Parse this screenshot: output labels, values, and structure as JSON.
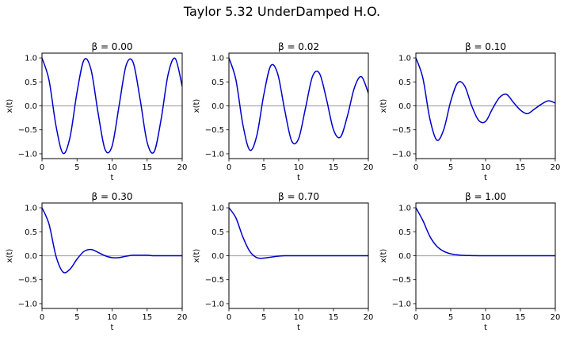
{
  "figure_title": "Taylor 5.32 UnderDamped H.O.",
  "chart_data": [
    {
      "type": "line",
      "title": "β = 0.00",
      "beta": 0.0,
      "xlabel": "t",
      "ylabel": "x(t)",
      "xlim": [
        0,
        20
      ],
      "ylim": [
        -1.1,
        1.1
      ],
      "xticks": [
        "0",
        "5",
        "10",
        "15",
        "20"
      ],
      "yticks": [
        "1.0",
        "0.5",
        "0.0",
        "−0.5",
        "−1.0"
      ],
      "series": [
        {
          "color": "#0000cc",
          "x": [
            0,
            1,
            2,
            3,
            4,
            5,
            6,
            7,
            8,
            9,
            10,
            11,
            12,
            13,
            14,
            15,
            16,
            17,
            18,
            19,
            20
          ],
          "y": [
            1.0,
            0.54,
            -0.416,
            -0.99,
            -0.654,
            0.284,
            0.96,
            0.754,
            -0.146,
            -0.911,
            -0.839,
            0.004,
            0.844,
            0.907,
            0.137,
            -0.76,
            -0.958,
            -0.275,
            0.66,
            0.989,
            0.408
          ]
        }
      ]
    },
    {
      "type": "line",
      "title": "β = 0.02",
      "beta": 0.02,
      "xlabel": "t",
      "ylabel": "x(t)",
      "xlim": [
        0,
        20
      ],
      "ylim": [
        -1.1,
        1.1
      ],
      "xticks": [
        "0",
        "5",
        "10",
        "15",
        "20"
      ],
      "yticks": [
        "1.0",
        "0.5",
        "0.0",
        "−0.5",
        "−1.0"
      ],
      "series": [
        {
          "color": "#0000cc",
          "x": [
            0,
            1,
            2,
            3,
            4,
            5,
            6,
            7,
            8,
            9,
            10,
            11,
            12,
            13,
            14,
            15,
            16,
            17,
            18,
            19,
            20
          ],
          "y": [
            1.0,
            0.545,
            -0.391,
            -0.923,
            -0.62,
            0.229,
            0.836,
            0.667,
            -0.086,
            -0.732,
            -0.683,
            -0.036,
            0.618,
            0.674,
            0.135,
            -0.498,
            -0.65,
            -0.211,
            0.376,
            0.61,
            0.265
          ]
        }
      ]
    },
    {
      "type": "line",
      "title": "β = 0.10",
      "beta": 0.1,
      "xlabel": "t",
      "ylabel": "x(t)",
      "xlim": [
        0,
        20
      ],
      "ylim": [
        -1.1,
        1.1
      ],
      "xticks": [
        "0",
        "5",
        "10",
        "15",
        "20"
      ],
      "yticks": [
        "1.0",
        "0.5",
        "0.0",
        "−0.5",
        "−1.0"
      ],
      "series": [
        {
          "color": "#0000cc",
          "x": [
            0,
            1,
            2,
            3,
            4,
            5,
            6,
            7,
            8,
            9,
            10,
            11,
            12,
            13,
            14,
            15,
            16,
            17,
            18,
            19,
            20
          ],
          "y": [
            1.0,
            0.583,
            -0.266,
            -0.714,
            -0.494,
            0.096,
            0.481,
            0.416,
            0.004,
            -0.302,
            -0.325,
            -0.058,
            0.174,
            0.24,
            0.072,
            -0.088,
            -0.164,
            -0.068,
            0.034,
            0.105,
            0.058
          ]
        }
      ]
    },
    {
      "type": "line",
      "title": "β = 0.30",
      "beta": 0.3,
      "xlabel": "t",
      "ylabel": "x(t)",
      "xlim": [
        0,
        20
      ],
      "ylim": [
        -1.1,
        1.1
      ],
      "xticks": [
        "0",
        "5",
        "10",
        "15",
        "20"
      ],
      "yticks": [
        "1.0",
        "0.5",
        "0.0",
        "−0.5",
        "−1.0"
      ],
      "series": [
        {
          "color": "#0000cc",
          "x": [
            0,
            1,
            2,
            3,
            4,
            5,
            6,
            7,
            8,
            9,
            10,
            11,
            12,
            13,
            14,
            15,
            16,
            17,
            18,
            19,
            20
          ],
          "y": [
            1.0,
            0.66,
            -0.01,
            -0.34,
            -0.28,
            -0.07,
            0.09,
            0.13,
            0.07,
            0.0,
            -0.04,
            -0.04,
            -0.01,
            0.01,
            0.01,
            0.01,
            0.0,
            0.0,
            0.0,
            0.0,
            0.0
          ]
        }
      ]
    },
    {
      "type": "line",
      "title": "β = 0.70",
      "beta": 0.7,
      "xlabel": "t",
      "ylabel": "x(t)",
      "xlim": [
        0,
        20
      ],
      "ylim": [
        -1.1,
        1.1
      ],
      "xticks": [
        "0",
        "5",
        "10",
        "15",
        "20"
      ],
      "yticks": [
        "1.0",
        "0.5",
        "0.0",
        "−0.5",
        "−1.0"
      ],
      "series": [
        {
          "color": "#0000cc",
          "x": [
            0,
            1,
            2,
            3,
            4,
            5,
            6,
            7,
            8,
            9,
            10,
            11,
            12,
            13,
            14,
            15,
            16,
            17,
            18,
            19,
            20
          ],
          "y": [
            1.0,
            0.79,
            0.39,
            0.09,
            -0.04,
            -0.05,
            -0.03,
            -0.01,
            0.0,
            0.0,
            0.0,
            0.0,
            0.0,
            0.0,
            0.0,
            0.0,
            0.0,
            0.0,
            0.0,
            0.0,
            0.0
          ]
        }
      ]
    },
    {
      "type": "line",
      "title": "β = 1.00",
      "beta": 1.0,
      "xlabel": "t",
      "ylabel": "x(t)",
      "xlim": [
        0,
        20
      ],
      "ylim": [
        -1.1,
        1.1
      ],
      "xticks": [
        "0",
        "5",
        "10",
        "15",
        "20"
      ],
      "yticks": [
        "1.0",
        "0.5",
        "0.0",
        "−0.5",
        "−1.0"
      ],
      "series": [
        {
          "color": "#0000cc",
          "x": [
            0,
            1,
            2,
            3,
            4,
            5,
            6,
            7,
            8,
            9,
            10,
            11,
            12,
            13,
            14,
            15,
            16,
            17,
            18,
            19,
            20
          ],
          "y": [
            1.0,
            0.736,
            0.406,
            0.199,
            0.092,
            0.04,
            0.017,
            0.007,
            0.003,
            0.001,
            0.0,
            0.0,
            0.0,
            0.0,
            0.0,
            0.0,
            0.0,
            0.0,
            0.0,
            0.0,
            0.0
          ]
        }
      ]
    }
  ]
}
